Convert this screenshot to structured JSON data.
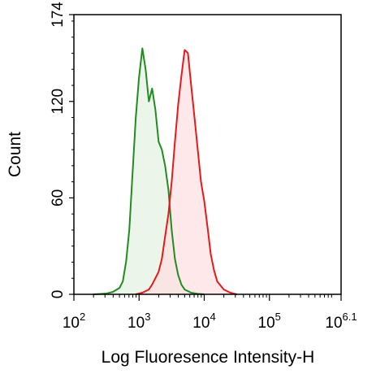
{
  "chart_data": {
    "type": "area",
    "xlabel": "Log Fluoresence Intensity-H",
    "ylabel": "Count",
    "x_scale": "log",
    "xlim": [
      2,
      6.1
    ],
    "ylim": [
      0,
      174
    ],
    "x_ticks": [
      {
        "exp": 2,
        "base": "10",
        "sup": "2"
      },
      {
        "exp": 3,
        "base": "10",
        "sup": "3"
      },
      {
        "exp": 4,
        "base": "10",
        "sup": "4"
      },
      {
        "exp": 5,
        "base": "10",
        "sup": "5"
      },
      {
        "exp": 6.1,
        "base": "10",
        "sup": "6.1"
      }
    ],
    "y_ticks": [
      {
        "value": 0,
        "label": "0"
      },
      {
        "value": 60,
        "label": "60"
      },
      {
        "value": 120,
        "label": "120"
      },
      {
        "value": 174,
        "label": "174"
      }
    ],
    "grid": false,
    "series": [
      {
        "color": "#228b22",
        "fill": "#e6f1e3",
        "points": [
          [
            2.3,
            0
          ],
          [
            2.5,
            0.5
          ],
          [
            2.6,
            1.5
          ],
          [
            2.7,
            4
          ],
          [
            2.75,
            8
          ],
          [
            2.8,
            20
          ],
          [
            2.85,
            40
          ],
          [
            2.9,
            75
          ],
          [
            2.95,
            110
          ],
          [
            3.0,
            135
          ],
          [
            3.05,
            153
          ],
          [
            3.1,
            140
          ],
          [
            3.15,
            120
          ],
          [
            3.2,
            128
          ],
          [
            3.25,
            115
          ],
          [
            3.3,
            95
          ],
          [
            3.35,
            90
          ],
          [
            3.4,
            80
          ],
          [
            3.45,
            65
          ],
          [
            3.5,
            40
          ],
          [
            3.55,
            22
          ],
          [
            3.6,
            12
          ],
          [
            3.65,
            6
          ],
          [
            3.7,
            3
          ],
          [
            3.8,
            1
          ],
          [
            3.9,
            0.3
          ],
          [
            4.0,
            0
          ]
        ]
      },
      {
        "color": "#e41a1c",
        "fill": "#fde0e2",
        "points": [
          [
            2.95,
            0
          ],
          [
            3.05,
            1
          ],
          [
            3.15,
            3
          ],
          [
            3.2,
            6
          ],
          [
            3.25,
            10
          ],
          [
            3.3,
            14
          ],
          [
            3.35,
            22
          ],
          [
            3.4,
            36
          ],
          [
            3.45,
            50
          ],
          [
            3.5,
            70
          ],
          [
            3.55,
            95
          ],
          [
            3.6,
            118
          ],
          [
            3.65,
            136
          ],
          [
            3.7,
            152
          ],
          [
            3.75,
            150
          ],
          [
            3.8,
            130
          ],
          [
            3.85,
            110
          ],
          [
            3.9,
            90
          ],
          [
            3.95,
            70
          ],
          [
            4.0,
            58
          ],
          [
            4.05,
            42
          ],
          [
            4.1,
            25
          ],
          [
            4.15,
            15
          ],
          [
            4.2,
            8
          ],
          [
            4.3,
            3
          ],
          [
            4.4,
            1
          ],
          [
            4.5,
            0
          ]
        ]
      }
    ]
  }
}
